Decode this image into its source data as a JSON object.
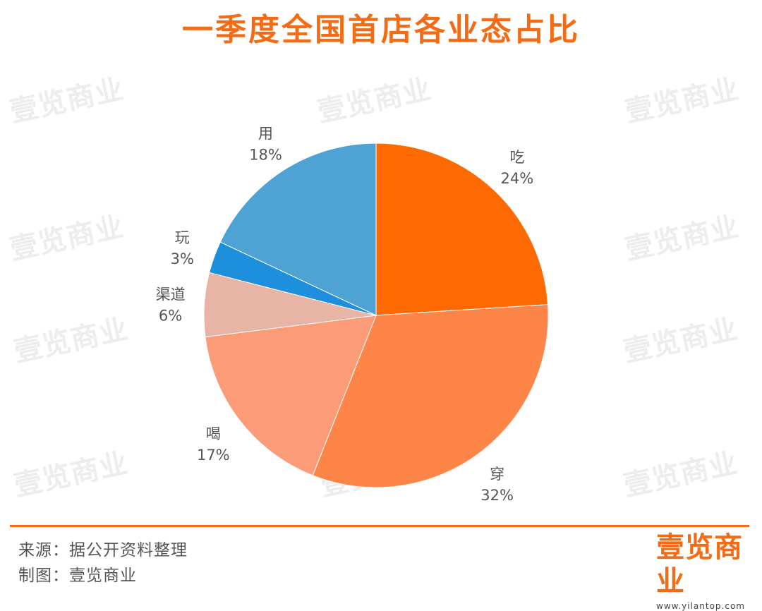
{
  "title": "一季度全国首店各业态占比",
  "watermark_text": "壹览商业",
  "chart_data": {
    "type": "pie",
    "title": "一季度全国首店各业态占比",
    "start": "12 o'clock",
    "direction": "clockwise",
    "slices": [
      {
        "label": "吃",
        "value": 24,
        "pct_text": "24%",
        "color": "#fe6a02"
      },
      {
        "label": "穿",
        "value": 32,
        "pct_text": "32%",
        "color": "#fe8548"
      },
      {
        "label": "喝",
        "value": 17,
        "pct_text": "17%",
        "color": "#fb9b78"
      },
      {
        "label": "渠道",
        "value": 6,
        "pct_text": "6%",
        "color": "#e8b4a5"
      },
      {
        "label": "玩",
        "value": 3,
        "pct_text": "3%",
        "color": "#1e8fdc"
      },
      {
        "label": "用",
        "value": 18,
        "pct_text": "18%",
        "color": "#4ea2d4"
      }
    ]
  },
  "footer": {
    "source": "来源：据公开资料整理",
    "credit": "制图：壹览商业"
  },
  "logo": {
    "text": "壹览商业",
    "url": "www.yilantop.com"
  },
  "colors": {
    "accent": "#f46b16"
  }
}
